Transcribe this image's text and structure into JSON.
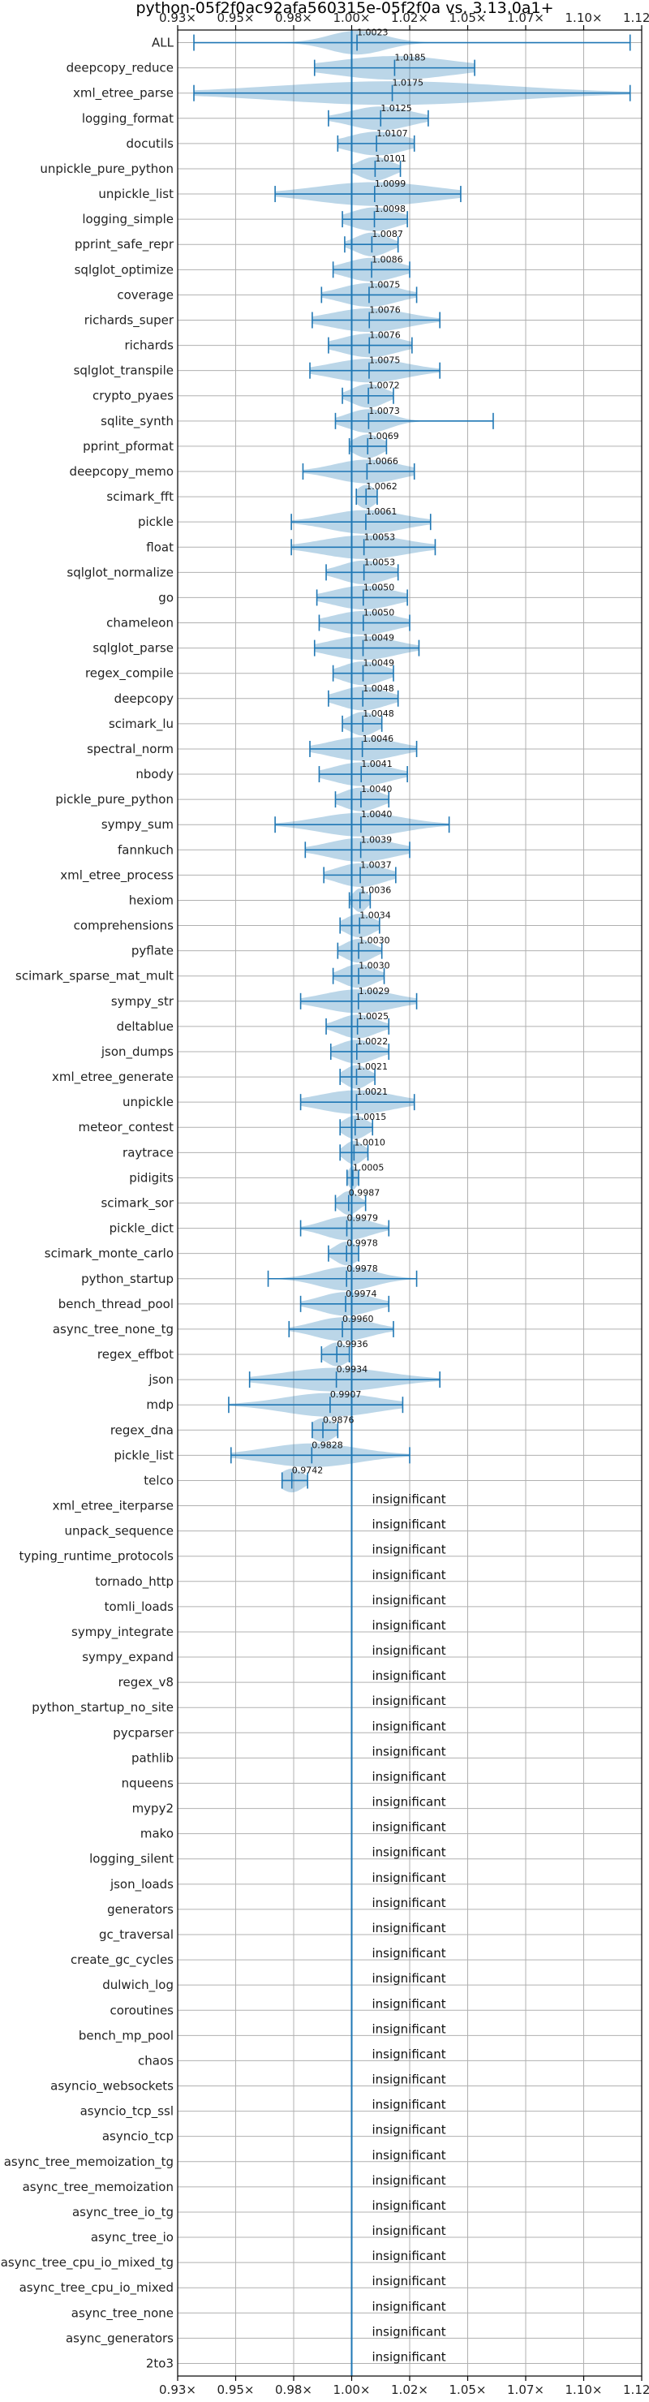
{
  "chart_data": {
    "type": "violin",
    "title": "python-05f2f0ac92afa560315e-05f2f0a vs. 3.13.0a1+",
    "xlim": [
      0.925,
      1.125
    ],
    "reference_line": 1.0,
    "x_ticks": [
      0.925,
      0.95,
      0.975,
      1.0,
      1.025,
      1.05,
      1.075,
      1.1,
      1.125
    ],
    "x_tick_labels": [
      "0.93×",
      "0.95×",
      "0.98×",
      "1.00×",
      "1.02×",
      "1.05×",
      "1.07×",
      "1.10×",
      "1.12×"
    ],
    "grid": true,
    "insignificant_text": "insignificant",
    "benchmarks": [
      {
        "name": "ALL",
        "label": "1.0023",
        "median": 1.0023,
        "min": 0.932,
        "max": 1.12,
        "spread": 0.012
      },
      {
        "name": "deepcopy_reduce",
        "label": "1.0185",
        "median": 1.0185,
        "min": 0.984,
        "max": 1.053,
        "spread": 0.025
      },
      {
        "name": "xml_etree_parse",
        "label": "1.0175",
        "median": 1.0175,
        "min": 0.932,
        "max": 1.12,
        "spread": 0.05
      },
      {
        "name": "logging_format",
        "label": "1.0125",
        "median": 1.0125,
        "min": 0.99,
        "max": 1.033,
        "spread": 0.013
      },
      {
        "name": "docutils",
        "label": "1.0107",
        "median": 1.0107,
        "min": 0.994,
        "max": 1.027,
        "spread": 0.012
      },
      {
        "name": "unpickle_pure_python",
        "label": "1.0101",
        "median": 1.0101,
        "min": 1.0,
        "max": 1.021,
        "spread": 0.007
      },
      {
        "name": "unpickle_list",
        "label": "1.0099",
        "median": 1.0099,
        "min": 0.967,
        "max": 1.047,
        "spread": 0.025
      },
      {
        "name": "logging_simple",
        "label": "1.0098",
        "median": 1.0098,
        "min": 0.996,
        "max": 1.024,
        "spread": 0.01
      },
      {
        "name": "pprint_safe_repr",
        "label": "1.0087",
        "median": 1.0087,
        "min": 0.997,
        "max": 1.02,
        "spread": 0.007
      },
      {
        "name": "sqlglot_optimize",
        "label": "1.0086",
        "median": 1.0086,
        "min": 0.992,
        "max": 1.025,
        "spread": 0.011
      },
      {
        "name": "coverage",
        "label": "1.0075",
        "median": 1.0075,
        "min": 0.987,
        "max": 1.028,
        "spread": 0.012
      },
      {
        "name": "richards_super",
        "label": "1.0076",
        "median": 1.0076,
        "min": 0.983,
        "max": 1.038,
        "spread": 0.016
      },
      {
        "name": "richards",
        "label": "1.0076",
        "median": 1.0076,
        "min": 0.99,
        "max": 1.026,
        "spread": 0.012
      },
      {
        "name": "sqlglot_transpile",
        "label": "1.0075",
        "median": 1.0075,
        "min": 0.982,
        "max": 1.038,
        "spread": 0.016
      },
      {
        "name": "crypto_pyaes",
        "label": "1.0072",
        "median": 1.0072,
        "min": 0.996,
        "max": 1.018,
        "spread": 0.007
      },
      {
        "name": "sqlite_synth",
        "label": "1.0073",
        "median": 1.0073,
        "min": 0.993,
        "max": 1.061,
        "spread": 0.009
      },
      {
        "name": "pprint_pformat",
        "label": "1.0069",
        "median": 1.0069,
        "min": 0.999,
        "max": 1.015,
        "spread": 0.006
      },
      {
        "name": "deepcopy_memo",
        "label": "1.0066",
        "median": 1.0066,
        "min": 0.979,
        "max": 1.027,
        "spread": 0.014
      },
      {
        "name": "scimark_fft",
        "label": "1.0062",
        "median": 1.0062,
        "min": 1.002,
        "max": 1.011,
        "spread": 0.004
      },
      {
        "name": "pickle",
        "label": "1.0061",
        "median": 1.0061,
        "min": 0.974,
        "max": 1.034,
        "spread": 0.016
      },
      {
        "name": "float",
        "label": "1.0053",
        "median": 1.0053,
        "min": 0.974,
        "max": 1.036,
        "spread": 0.018
      },
      {
        "name": "sqlglot_normalize",
        "label": "1.0053",
        "median": 1.0053,
        "min": 0.989,
        "max": 1.02,
        "spread": 0.01
      },
      {
        "name": "go",
        "label": "1.0050",
        "median": 1.005,
        "min": 0.985,
        "max": 1.024,
        "spread": 0.013
      },
      {
        "name": "chameleon",
        "label": "1.0050",
        "median": 1.005,
        "min": 0.986,
        "max": 1.025,
        "spread": 0.013
      },
      {
        "name": "sqlglot_parse",
        "label": "1.0049",
        "median": 1.0049,
        "min": 0.984,
        "max": 1.029,
        "spread": 0.014
      },
      {
        "name": "regex_compile",
        "label": "1.0049",
        "median": 1.0049,
        "min": 0.992,
        "max": 1.018,
        "spread": 0.009
      },
      {
        "name": "deepcopy",
        "label": "1.0048",
        "median": 1.0048,
        "min": 0.99,
        "max": 1.02,
        "spread": 0.01
      },
      {
        "name": "scimark_lu",
        "label": "1.0048",
        "median": 1.0048,
        "min": 0.996,
        "max": 1.013,
        "spread": 0.006
      },
      {
        "name": "spectral_norm",
        "label": "1.0046",
        "median": 1.0046,
        "min": 0.982,
        "max": 1.028,
        "spread": 0.014
      },
      {
        "name": "nbody",
        "label": "1.0041",
        "median": 1.0041,
        "min": 0.986,
        "max": 1.024,
        "spread": 0.012
      },
      {
        "name": "pickle_pure_python",
        "label": "1.0040",
        "median": 1.004,
        "min": 0.993,
        "max": 1.016,
        "spread": 0.008
      },
      {
        "name": "sympy_sum",
        "label": "1.0040",
        "median": 1.004,
        "min": 0.967,
        "max": 1.042,
        "spread": 0.018
      },
      {
        "name": "fannkuch",
        "label": "1.0039",
        "median": 1.0039,
        "min": 0.98,
        "max": 1.025,
        "spread": 0.014
      },
      {
        "name": "xml_etree_process",
        "label": "1.0037",
        "median": 1.0037,
        "min": 0.988,
        "max": 1.019,
        "spread": 0.01
      },
      {
        "name": "hexiom",
        "label": "1.0036",
        "median": 1.0036,
        "min": 0.999,
        "max": 1.008,
        "spread": 0.003
      },
      {
        "name": "comprehensions",
        "label": "1.0034",
        "median": 1.0034,
        "min": 0.995,
        "max": 1.012,
        "spread": 0.006
      },
      {
        "name": "pyflate",
        "label": "1.0030",
        "median": 1.003,
        "min": 0.994,
        "max": 1.013,
        "spread": 0.006
      },
      {
        "name": "scimark_sparse_mat_mult",
        "label": "1.0030",
        "median": 1.003,
        "min": 0.992,
        "max": 1.014,
        "spread": 0.007
      },
      {
        "name": "sympy_str",
        "label": "1.0029",
        "median": 1.0029,
        "min": 0.978,
        "max": 1.028,
        "spread": 0.015
      },
      {
        "name": "deltablue",
        "label": "1.0025",
        "median": 1.0025,
        "min": 0.989,
        "max": 1.016,
        "spread": 0.008
      },
      {
        "name": "json_dumps",
        "label": "1.0022",
        "median": 1.0022,
        "min": 0.991,
        "max": 1.016,
        "spread": 0.008
      },
      {
        "name": "xml_etree_generate",
        "label": "1.0021",
        "median": 1.0021,
        "min": 0.995,
        "max": 1.01,
        "spread": 0.005
      },
      {
        "name": "unpickle",
        "label": "1.0021",
        "median": 1.0021,
        "min": 0.978,
        "max": 1.027,
        "spread": 0.016
      },
      {
        "name": "meteor_contest",
        "label": "1.0015",
        "median": 1.0015,
        "min": 0.995,
        "max": 1.009,
        "spread": 0.005
      },
      {
        "name": "raytrace",
        "label": "1.0010",
        "median": 1.001,
        "min": 0.995,
        "max": 1.007,
        "spread": 0.004
      },
      {
        "name": "pidigits",
        "label": "1.0005",
        "median": 1.0005,
        "min": 0.998,
        "max": 1.003,
        "spread": 0.002
      },
      {
        "name": "scimark_sor",
        "label": "0.9987",
        "median": 0.9987,
        "min": 0.993,
        "max": 1.006,
        "spread": 0.004
      },
      {
        "name": "pickle_dict",
        "label": "0.9979",
        "median": 0.9979,
        "min": 0.978,
        "max": 1.016,
        "spread": 0.01
      },
      {
        "name": "scimark_monte_carlo",
        "label": "0.9978",
        "median": 0.9978,
        "min": 0.99,
        "max": 1.003,
        "spread": 0.005
      },
      {
        "name": "python_startup",
        "label": "0.9978",
        "median": 0.9978,
        "min": 0.964,
        "max": 1.028,
        "spread": 0.012
      },
      {
        "name": "bench_thread_pool",
        "label": "0.9974",
        "median": 0.9974,
        "min": 0.978,
        "max": 1.016,
        "spread": 0.011
      },
      {
        "name": "async_tree_none_tg",
        "label": "0.9960",
        "median": 0.996,
        "min": 0.973,
        "max": 1.018,
        "spread": 0.012
      },
      {
        "name": "regex_effbot",
        "label": "0.9936",
        "median": 0.9936,
        "min": 0.987,
        "max": 0.999,
        "spread": 0.005
      },
      {
        "name": "json",
        "label": "0.9934",
        "median": 0.9934,
        "min": 0.956,
        "max": 1.038,
        "spread": 0.022
      },
      {
        "name": "mdp",
        "label": "0.9907",
        "median": 0.9907,
        "min": 0.947,
        "max": 1.022,
        "spread": 0.02
      },
      {
        "name": "regex_dna",
        "label": "0.9876",
        "median": 0.9876,
        "min": 0.983,
        "max": 0.994,
        "spread": 0.005
      },
      {
        "name": "pickle_list",
        "label": "0.9828",
        "median": 0.9828,
        "min": 0.948,
        "max": 1.025,
        "spread": 0.02
      },
      {
        "name": "telco",
        "label": "0.9742",
        "median": 0.9742,
        "min": 0.97,
        "max": 0.981,
        "spread": 0.005
      },
      {
        "name": "xml_etree_iterparse"
      },
      {
        "name": "unpack_sequence"
      },
      {
        "name": "typing_runtime_protocols"
      },
      {
        "name": "tornado_http"
      },
      {
        "name": "tomli_loads"
      },
      {
        "name": "sympy_integrate"
      },
      {
        "name": "sympy_expand"
      },
      {
        "name": "regex_v8"
      },
      {
        "name": "python_startup_no_site"
      },
      {
        "name": "pycparser"
      },
      {
        "name": "pathlib"
      },
      {
        "name": "nqueens"
      },
      {
        "name": "mypy2"
      },
      {
        "name": "mako"
      },
      {
        "name": "logging_silent"
      },
      {
        "name": "json_loads"
      },
      {
        "name": "generators"
      },
      {
        "name": "gc_traversal"
      },
      {
        "name": "create_gc_cycles"
      },
      {
        "name": "dulwich_log"
      },
      {
        "name": "coroutines"
      },
      {
        "name": "bench_mp_pool"
      },
      {
        "name": "chaos"
      },
      {
        "name": "asyncio_websockets"
      },
      {
        "name": "asyncio_tcp_ssl"
      },
      {
        "name": "asyncio_tcp"
      },
      {
        "name": "async_tree_memoization_tg"
      },
      {
        "name": "async_tree_memoization"
      },
      {
        "name": "async_tree_io_tg"
      },
      {
        "name": "async_tree_io"
      },
      {
        "name": "async_tree_cpu_io_mixed_tg"
      },
      {
        "name": "async_tree_cpu_io_mixed"
      },
      {
        "name": "async_tree_none"
      },
      {
        "name": "async_generators"
      },
      {
        "name": "2to3"
      }
    ],
    "colors": {
      "violin": "#1f77b4",
      "violin_fill_opacity": "0.3",
      "grid": "#b0b0b0",
      "axis": "#000000"
    }
  }
}
